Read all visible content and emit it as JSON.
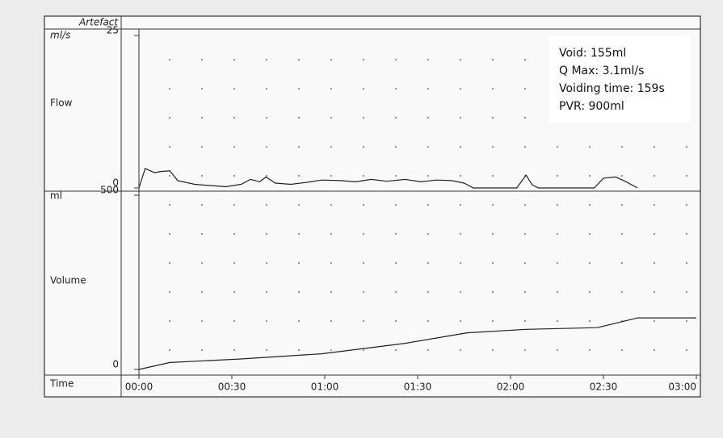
{
  "header_label": "Artefact",
  "chart_data": [
    {
      "type": "line",
      "unit_label": "ml/s",
      "axis_label": "Flow",
      "xlim": [
        0,
        180
      ],
      "ylim": [
        0,
        25
      ],
      "yticks": [
        0,
        25
      ],
      "x": [
        0,
        2,
        5,
        7,
        10,
        12.5,
        18,
        23,
        28,
        33,
        36,
        39,
        41,
        44,
        49,
        54,
        59,
        65,
        70,
        75,
        80,
        86,
        91,
        96,
        101,
        105,
        108,
        122,
        125,
        127,
        129,
        147,
        150,
        154,
        157,
        161
      ],
      "values": [
        0,
        3.2,
        2.5,
        2.7,
        2.8,
        1.2,
        0.6,
        0.4,
        0.2,
        0.6,
        1.4,
        1.0,
        1.8,
        0.8,
        0.6,
        0.9,
        1.3,
        1.2,
        1.0,
        1.4,
        1.1,
        1.4,
        1.0,
        1.3,
        1.2,
        0.8,
        0,
        0,
        2.1,
        0.5,
        0,
        0,
        1.6,
        1.8,
        1.1,
        0
      ],
      "color": "#222222",
      "annotations": [
        "Void: 155ml",
        "Q Max: 3.1ml/s",
        "Voiding time: 159s",
        "PVR: 900ml"
      ]
    },
    {
      "type": "line",
      "unit_label": "ml",
      "axis_label": "Volume",
      "x_axis_label": "Time",
      "xlim": [
        0,
        180
      ],
      "ylim": [
        0,
        500
      ],
      "yticks": [
        0,
        500
      ],
      "xticks": [
        {
          "value": 0,
          "label": "00:00"
        },
        {
          "value": 30,
          "label": "00:30"
        },
        {
          "value": 60,
          "label": "01:00"
        },
        {
          "value": 90,
          "label": "01:30"
        },
        {
          "value": 120,
          "label": "02:00"
        },
        {
          "value": 150,
          "label": "02:30"
        },
        {
          "value": 180,
          "label": "03:00"
        }
      ],
      "x": [
        0,
        10,
        33,
        59,
        86,
        106,
        125,
        148,
        161,
        180
      ],
      "values": [
        0,
        20,
        30,
        45,
        75,
        105,
        115,
        120,
        148,
        148
      ],
      "color": "#222222"
    }
  ]
}
